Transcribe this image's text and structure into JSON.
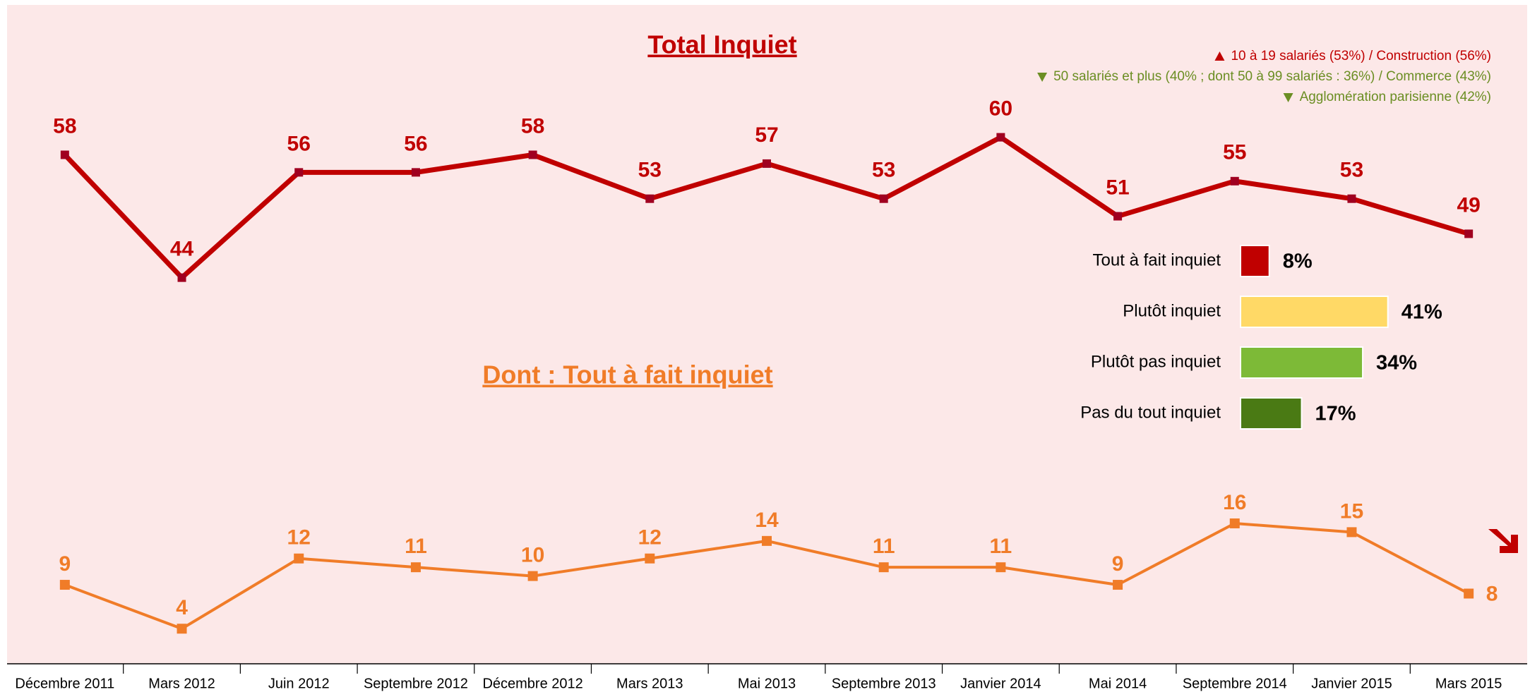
{
  "chart_data": [
    {
      "type": "line",
      "categories": [
        "Décembre 2011",
        "Mars 2012",
        "Juin 2012",
        "Septembre 2012",
        "Décembre 2012",
        "Mars 2013",
        "Mai 2013",
        "Septembre 2013",
        "Janvier 2014",
        "Mai 2014",
        "Septembre 2014",
        "Janvier 2015",
        "Mars 2015"
      ],
      "series": [
        {
          "name": "Total Inquiet",
          "color": "#c00000",
          "values": [
            58,
            44,
            56,
            56,
            58,
            53,
            57,
            53,
            60,
            51,
            55,
            53,
            49
          ]
        },
        {
          "name": "Dont : Tout à fait inquiet",
          "color": "#f07c28",
          "values": [
            9,
            4,
            12,
            11,
            10,
            12,
            14,
            11,
            11,
            9,
            16,
            15,
            8
          ]
        }
      ],
      "ylim": [
        0,
        75
      ],
      "annotations": [
        {
          "text": "10 à 19 salariés (53%) / Construction (56%)",
          "direction": "up",
          "color": "#c00000"
        },
        {
          "text": "50 salariés et plus  (40% ; dont 50 à 99 salariés : 36%) / Commerce (43%)",
          "direction": "down",
          "color": "#6b8e23"
        },
        {
          "text": "Agglomération parisienne (42%)",
          "direction": "down",
          "color": "#6b8e23"
        }
      ]
    },
    {
      "type": "bar",
      "categories": [
        "Tout à fait inquiet",
        "Plutôt inquiet",
        "Plutôt pas inquiet",
        "Pas du tout inquiet"
      ],
      "values": [
        8,
        41,
        34,
        17
      ],
      "value_labels": [
        "8%",
        "41%",
        "34%",
        "17%"
      ],
      "colors": [
        "#c00000",
        "#ffd966",
        "#7dba37",
        "#4a7a14"
      ],
      "xlim": [
        0,
        100
      ]
    }
  ]
}
